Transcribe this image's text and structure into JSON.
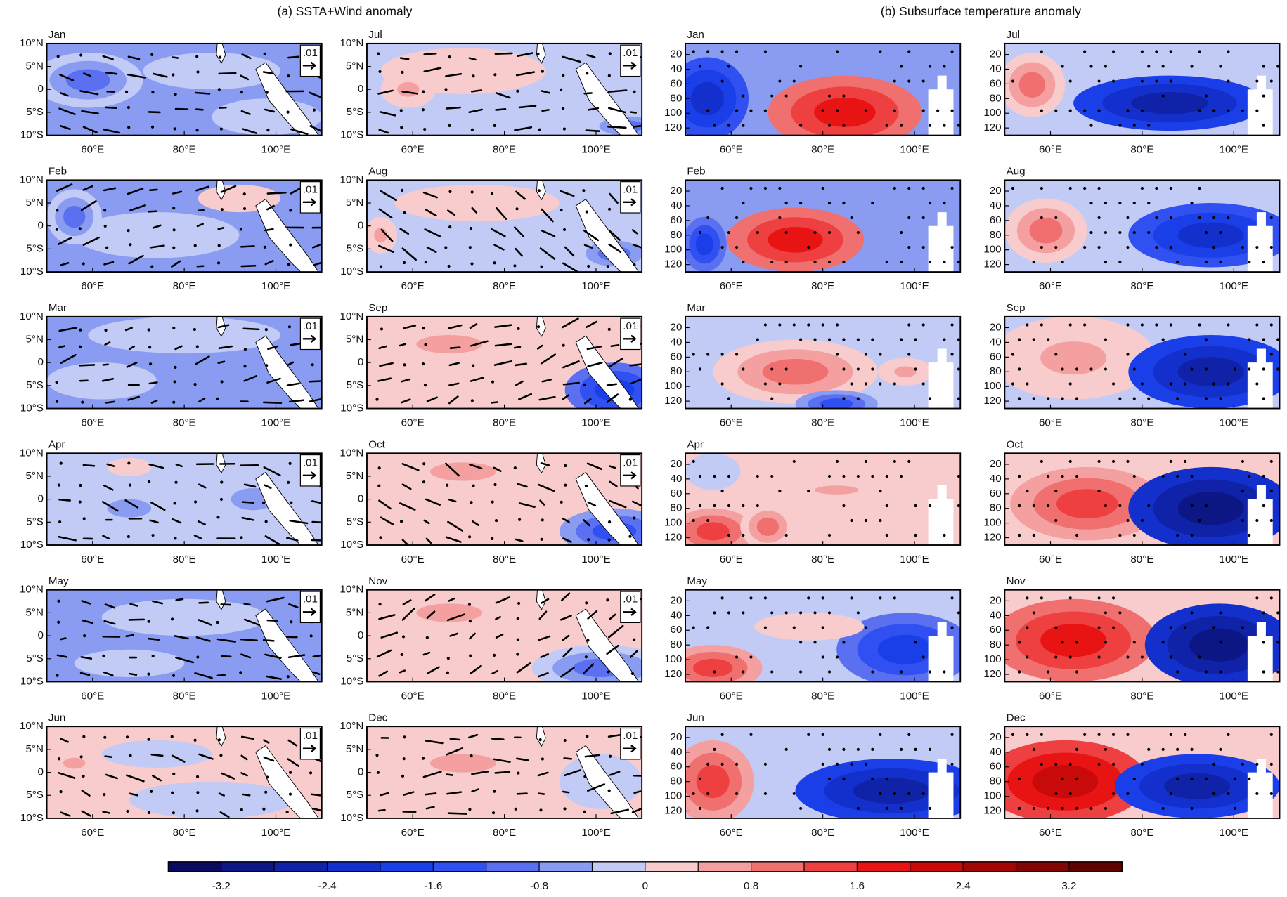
{
  "chart_data": [
    {
      "type": "vector-map",
      "title": "(a) SSTA+Wind anomaly",
      "panels": [
        "Jan",
        "Feb",
        "Mar",
        "Apr",
        "May",
        "Jun",
        "Jul",
        "Aug",
        "Sep",
        "Oct",
        "Nov",
        "Dec"
      ],
      "xlim": [
        50,
        110
      ],
      "ylim": [
        -10,
        10
      ],
      "xticks": [
        {
          "value": 60,
          "label": "60°E"
        },
        {
          "value": 80,
          "label": "80°E"
        },
        {
          "value": 100,
          "label": "100°E"
        }
      ],
      "yticks": [
        {
          "value": 10,
          "label": "10°N"
        },
        {
          "value": 5,
          "label": "5°N"
        },
        0,
        {
          "value": -5,
          "label": "5°S"
        },
        {
          "value": -10,
          "label": "10°S"
        }
      ],
      "reference_label": ".01"
    },
    {
      "type": "depth-section",
      "title": "(b) Subsurface temperature anomaly",
      "panels": [
        "Jan",
        "Feb",
        "Mar",
        "Apr",
        "May",
        "Jun",
        "Jul",
        "Aug",
        "Sep",
        "Oct",
        "Nov",
        "Dec"
      ],
      "xlim": [
        50,
        110
      ],
      "ylim": [
        5,
        130
      ],
      "xticks": [
        {
          "value": 60,
          "label": "60°E"
        },
        {
          "value": 80,
          "label": "80°E"
        },
        {
          "value": 100,
          "label": "100°E"
        }
      ],
      "yticks": [
        20,
        40,
        60,
        80,
        100,
        120
      ]
    },
    {
      "type": "colorbar",
      "clim": [
        -3.6,
        3.6
      ],
      "levels": [
        -3.2,
        -2.8,
        -2.4,
        -2.0,
        -1.6,
        -1.2,
        -0.8,
        -0.4,
        0,
        0.4,
        0.8,
        1.2,
        1.6,
        2.0,
        2.4,
        2.8,
        3.2
      ],
      "ticks": [
        -3.2,
        -2.4,
        -1.6,
        -0.8,
        0,
        0.8,
        1.6,
        2.4,
        3.2
      ],
      "colors": [
        "#0a0a5e",
        "#0c1684",
        "#0f22a8",
        "#1430cc",
        "#1a3fe8",
        "#3050f2",
        "#5a70f0",
        "#8a9cf2",
        "#c2cbf6",
        "#f8cccc",
        "#f4a0a0",
        "#f07070",
        "#ee4040",
        "#e81414",
        "#c80a0a",
        "#a40606",
        "#820404",
        "#5e0202"
      ]
    }
  ]
}
